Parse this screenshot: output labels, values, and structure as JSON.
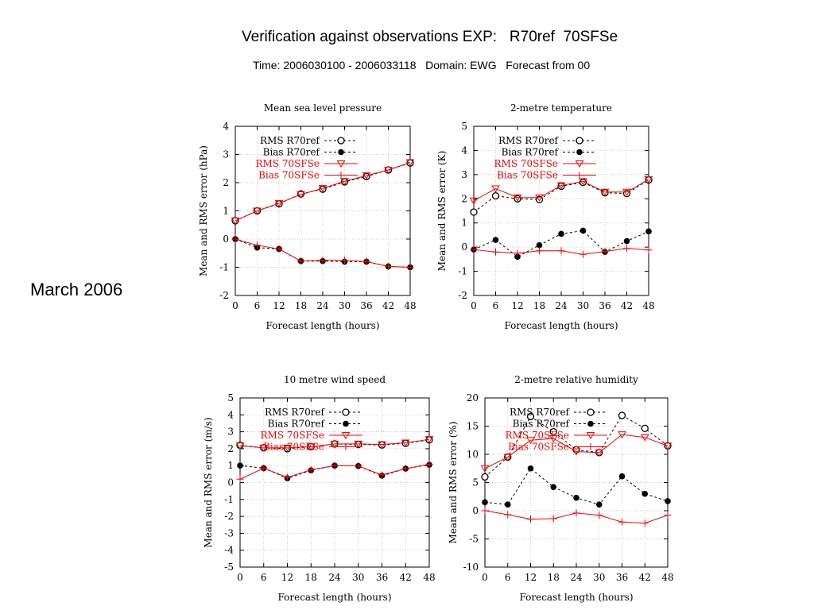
{
  "header": {
    "title": "Verification against observations EXP:   R70ref  70SFSe",
    "subtitle": "Time: 2006030100 - 2006033118   Domain: EWG   Forecast from 00",
    "side_label": "March 2006"
  },
  "colors": {
    "ref": "#000000",
    "exp": "#ff0000",
    "grid": "#bbbbbb",
    "frame": "#000000"
  },
  "chart_data": [
    {
      "type": "line",
      "title": "Mean sea level pressure",
      "xlabel": "Forecast length (hours)",
      "ylabel": "Mean and RMS error (hPa)",
      "xlim": [
        0,
        48
      ],
      "ylim": [
        -2,
        4
      ],
      "x": [
        0,
        6,
        12,
        18,
        24,
        30,
        36,
        42,
        48
      ],
      "yticks": [
        -2,
        -1,
        0,
        1,
        2,
        3,
        4
      ],
      "grid": true,
      "legend_position": "top-left",
      "series": [
        {
          "name": "RMS R70ref",
          "marker": "open-circle",
          "values": [
            0.65,
            1.0,
            1.25,
            1.6,
            1.77,
            2.03,
            2.22,
            2.45,
            2.7
          ]
        },
        {
          "name": "Bias R70ref",
          "marker": "filled-circle",
          "values": [
            0.0,
            -0.3,
            -0.35,
            -0.78,
            -0.78,
            -0.8,
            -0.8,
            -0.97,
            -1.0
          ]
        },
        {
          "name": "RMS 70SFSe",
          "marker": "triangle-down",
          "values": [
            0.65,
            1.0,
            1.27,
            1.58,
            1.8,
            2.05,
            2.25,
            2.45,
            2.72
          ]
        },
        {
          "name": "Bias 70SFSe",
          "marker": "plus",
          "values": [
            0.0,
            -0.22,
            -0.35,
            -0.78,
            -0.75,
            -0.75,
            -0.8,
            -0.97,
            -1.0
          ]
        }
      ]
    },
    {
      "type": "line",
      "title": "2-metre temperature",
      "xlabel": "Forecast length (hours)",
      "ylabel": "Mean and RMS error (K)",
      "xlim": [
        0,
        48
      ],
      "ylim": [
        -2,
        5
      ],
      "x": [
        0,
        6,
        12,
        18,
        24,
        30,
        36,
        42,
        48
      ],
      "yticks": [
        -2,
        -1,
        0,
        1,
        2,
        3,
        4,
        5
      ],
      "grid": true,
      "legend_position": "top-left",
      "series": [
        {
          "name": "RMS R70ref",
          "marker": "open-circle",
          "values": [
            1.45,
            2.12,
            2.0,
            1.97,
            2.52,
            2.68,
            2.25,
            2.22,
            2.78
          ]
        },
        {
          "name": "Bias R70ref",
          "marker": "filled-circle",
          "values": [
            -0.1,
            0.3,
            -0.4,
            0.08,
            0.55,
            0.68,
            -0.2,
            0.25,
            0.65
          ]
        },
        {
          "name": "RMS 70SFSe",
          "marker": "triangle-down",
          "values": [
            1.92,
            2.42,
            2.05,
            2.05,
            2.55,
            2.72,
            2.28,
            2.28,
            2.8
          ]
        },
        {
          "name": "Bias 70SFSe",
          "marker": "plus",
          "values": [
            -0.1,
            -0.2,
            -0.25,
            -0.15,
            -0.15,
            -0.3,
            -0.18,
            -0.05,
            -0.12
          ]
        }
      ]
    },
    {
      "type": "line",
      "title": "10 metre wind speed",
      "xlabel": "Forecast length (hours)",
      "ylabel": "Mean and RMS error (m/s)",
      "xlim": [
        0,
        48
      ],
      "ylim": [
        -5,
        5
      ],
      "x": [
        0,
        6,
        12,
        18,
        24,
        30,
        36,
        42,
        48
      ],
      "yticks": [
        -5,
        -4,
        -3,
        -2,
        -1,
        0,
        1,
        2,
        3,
        4,
        5
      ],
      "grid": true,
      "legend_position": "top-left",
      "series": [
        {
          "name": "RMS R70ref",
          "marker": "open-circle",
          "values": [
            2.2,
            2.05,
            2.0,
            2.12,
            2.28,
            2.25,
            2.22,
            2.32,
            2.52
          ]
        },
        {
          "name": "Bias R70ref",
          "marker": "filled-circle",
          "values": [
            1.0,
            0.85,
            0.25,
            0.72,
            1.0,
            0.98,
            0.4,
            0.82,
            1.05
          ]
        },
        {
          "name": "RMS 70SFSe",
          "marker": "triangle-down",
          "values": [
            2.18,
            2.05,
            2.05,
            2.12,
            2.28,
            2.28,
            2.25,
            2.35,
            2.55
          ]
        },
        {
          "name": "Bias 70SFSe",
          "marker": "plus",
          "values": [
            0.2,
            0.85,
            0.3,
            0.75,
            1.0,
            0.98,
            0.45,
            0.82,
            1.08
          ]
        }
      ]
    },
    {
      "type": "line",
      "title": "2-metre relative humidity",
      "xlabel": "Forecast length (hours)",
      "ylabel": "Mean and RMS error (%)",
      "xlim": [
        0,
        48
      ],
      "ylim": [
        -10,
        20
      ],
      "x": [
        0,
        6,
        12,
        18,
        24,
        30,
        36,
        42,
        48
      ],
      "yticks": [
        -10,
        -5,
        0,
        5,
        10,
        15,
        20
      ],
      "grid": true,
      "legend_position": "top-left",
      "series": [
        {
          "name": "RMS R70ref",
          "marker": "open-circle",
          "values": [
            6.0,
            9.5,
            16.7,
            14.0,
            10.8,
            10.3,
            16.9,
            14.6,
            11.5
          ]
        },
        {
          "name": "Bias R70ref",
          "marker": "filled-circle",
          "values": [
            1.5,
            1.1,
            7.5,
            4.2,
            2.3,
            1.1,
            6.1,
            3.0,
            1.7
          ]
        },
        {
          "name": "RMS 70SFSe",
          "marker": "triangle-down",
          "values": [
            7.5,
            9.5,
            12.5,
            12.8,
            10.5,
            10.3,
            13.5,
            13.0,
            11.5
          ]
        },
        {
          "name": "Bias 70SFSe",
          "marker": "plus",
          "values": [
            0.0,
            -0.7,
            -1.5,
            -1.4,
            -0.4,
            -0.8,
            -2.0,
            -2.2,
            -0.8
          ]
        }
      ]
    }
  ]
}
